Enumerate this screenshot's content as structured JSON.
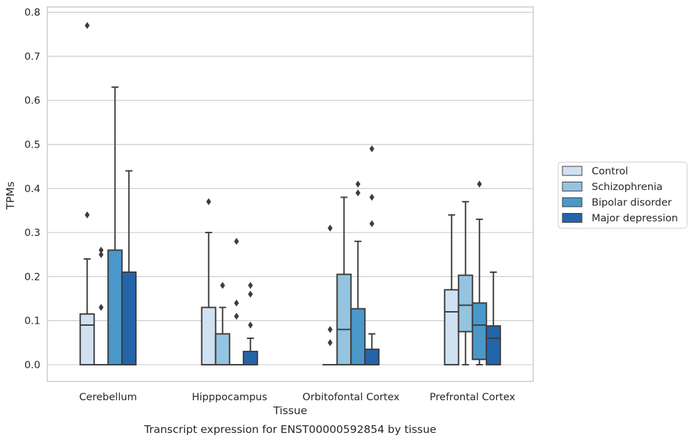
{
  "chart_data": {
    "type": "box",
    "title": "Transcript expression for ENST00000592854 by tissue",
    "xlabel": "Tissue",
    "ylabel": "TPMs",
    "ylim": [
      -0.038,
      0.812
    ],
    "yticks": [
      "0.0",
      "0.1",
      "0.2",
      "0.3",
      "0.4",
      "0.5",
      "0.6",
      "0.7",
      "0.8"
    ],
    "grid": "horizontal",
    "legend_position": "right",
    "categories": [
      "Cerebellum",
      "Hipppocampus",
      "Orbitofontal Cortex",
      "Prefrontal Cortex"
    ],
    "series": [
      {
        "name": "Control",
        "color": "#d0e1f2",
        "boxes": [
          {
            "whislo": 0,
            "q1": 0,
            "med": 0.09,
            "q3": 0.115,
            "whishi": 0.24,
            "fliers": [
              0.34,
              0.77
            ]
          },
          {
            "whislo": 0,
            "q1": 0,
            "med": 0,
            "q3": 0.13,
            "whishi": 0.3,
            "fliers": [
              0.37
            ]
          },
          {
            "whislo": 0,
            "q1": 0,
            "med": 0,
            "q3": 0,
            "whishi": 0,
            "fliers": [
              0.05,
              0.08,
              0.31
            ]
          },
          {
            "whislo": 0,
            "q1": 0,
            "med": 0.12,
            "q3": 0.17,
            "whishi": 0.34,
            "fliers": []
          }
        ]
      },
      {
        "name": "Schizophrenia",
        "color": "#94c4df",
        "boxes": [
          {
            "whislo": 0,
            "q1": 0,
            "med": 0,
            "q3": 0,
            "whishi": 0,
            "fliers": [
              0.13,
              0.25,
              0.26
            ]
          },
          {
            "whislo": 0,
            "q1": 0,
            "med": 0,
            "q3": 0.07,
            "whishi": 0.13,
            "fliers": [
              0.18
            ]
          },
          {
            "whislo": 0,
            "q1": 0,
            "med": 0.08,
            "q3": 0.205,
            "whishi": 0.38,
            "fliers": []
          },
          {
            "whislo": 0,
            "q1": 0.075,
            "med": 0.135,
            "q3": 0.203,
            "whishi": 0.37,
            "fliers": []
          }
        ]
      },
      {
        "name": "Bipolar disorder",
        "color": "#4a98c9",
        "boxes": [
          {
            "whislo": 0,
            "q1": 0,
            "med": 0,
            "q3": 0.26,
            "whishi": 0.63,
            "fliers": []
          },
          {
            "whislo": 0,
            "q1": 0,
            "med": 0,
            "q3": 0,
            "whishi": 0,
            "fliers": [
              0.11,
              0.14,
              0.28
            ]
          },
          {
            "whislo": 0,
            "q1": 0,
            "med": 0,
            "q3": 0.127,
            "whishi": 0.28,
            "fliers": [
              0.39,
              0.41
            ]
          },
          {
            "whislo": 0,
            "q1": 0.012,
            "med": 0.09,
            "q3": 0.14,
            "whishi": 0.33,
            "fliers": [
              0.41
            ]
          }
        ]
      },
      {
        "name": "Major depression",
        "color": "#2365ab",
        "boxes": [
          {
            "whislo": 0,
            "q1": 0,
            "med": 0,
            "q3": 0.21,
            "whishi": 0.44,
            "fliers": []
          },
          {
            "whislo": 0,
            "q1": 0,
            "med": 0,
            "q3": 0.03,
            "whishi": 0.06,
            "fliers": [
              0.09,
              0.16,
              0.18
            ]
          },
          {
            "whislo": 0,
            "q1": 0,
            "med": 0,
            "q3": 0.035,
            "whishi": 0.07,
            "fliers": [
              0.32,
              0.38,
              0.49
            ]
          },
          {
            "whislo": 0,
            "q1": 0,
            "med": 0.06,
            "q3": 0.088,
            "whishi": 0.21,
            "fliers": []
          }
        ]
      }
    ]
  }
}
